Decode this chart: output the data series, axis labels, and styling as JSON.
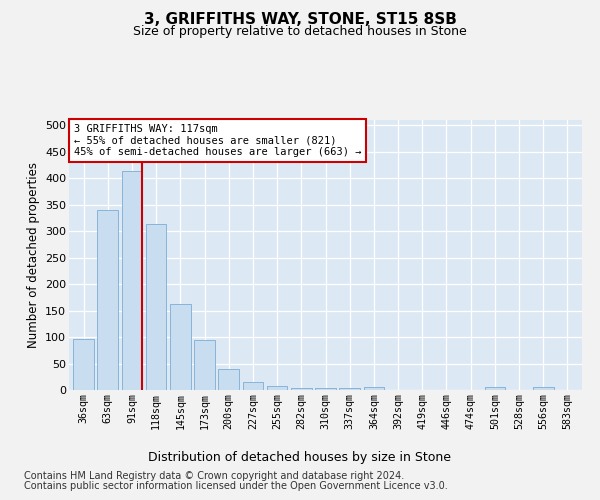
{
  "title1": "3, GRIFFITHS WAY, STONE, ST15 8SB",
  "title2": "Size of property relative to detached houses in Stone",
  "xlabel": "Distribution of detached houses by size in Stone",
  "ylabel": "Number of detached properties",
  "categories": [
    "36sqm",
    "63sqm",
    "91sqm",
    "118sqm",
    "145sqm",
    "173sqm",
    "200sqm",
    "227sqm",
    "255sqm",
    "282sqm",
    "310sqm",
    "337sqm",
    "364sqm",
    "392sqm",
    "419sqm",
    "446sqm",
    "474sqm",
    "501sqm",
    "528sqm",
    "556sqm",
    "583sqm"
  ],
  "values": [
    97,
    340,
    414,
    313,
    163,
    95,
    40,
    15,
    8,
    4,
    3,
    3,
    5,
    0,
    0,
    0,
    0,
    5,
    0,
    5,
    0
  ],
  "bar_color": "#c8ddef",
  "bar_edge_color": "#7aadd4",
  "vline_x": 2.43,
  "vline_color": "#cc0000",
  "annotation_line1": "3 GRIFFITHS WAY: 117sqm",
  "annotation_line2": "← 55% of detached houses are smaller (821)",
  "annotation_line3": "45% of semi-detached houses are larger (663) →",
  "annotation_box_color": "#ffffff",
  "annotation_box_edge": "#cc0000",
  "ylim": [
    0,
    510
  ],
  "yticks": [
    0,
    50,
    100,
    150,
    200,
    250,
    300,
    350,
    400,
    450,
    500
  ],
  "background_color": "#dce9f5",
  "grid_color": "#ffffff",
  "fig_background": "#f2f2f2",
  "footer1": "Contains HM Land Registry data © Crown copyright and database right 2024.",
  "footer2": "Contains public sector information licensed under the Open Government Licence v3.0."
}
